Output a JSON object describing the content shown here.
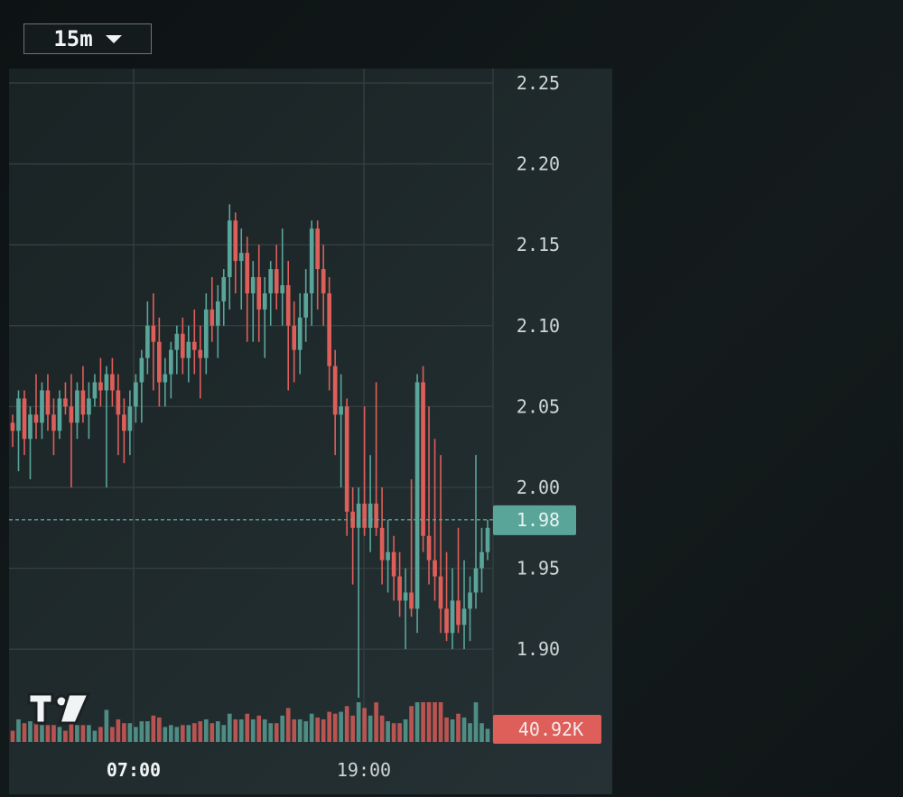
{
  "toolbar": {
    "timeframe": "15m",
    "dropdown_icon": "caret-down-icon"
  },
  "logo": {
    "icon": "tradingview-logo-icon"
  },
  "colors": {
    "up": "#5aa59a",
    "down": "#de5e5a",
    "grid": "#333d3f",
    "axis_text": "#d0d6d7",
    "last_price_bg": "#5aa59a",
    "volume_label_bg": "#de5e5a"
  },
  "chart_data": {
    "type": "candlestick",
    "instrument_price_axis": {
      "ticks": [
        "2.25",
        "2.20",
        "2.15",
        "2.10",
        "2.05",
        "2.00",
        "1.95",
        "1.90"
      ],
      "ylim": [
        1.876,
        2.258
      ]
    },
    "time_axis": {
      "ticks": [
        "07:00",
        "19:00"
      ],
      "highlighted_tick": "07:00"
    },
    "last_price": 1.98,
    "last_price_label": "1.98",
    "volume_label": "40.92K",
    "candles_ohlc": [
      [
        2.04,
        2.045,
        2.025,
        2.035
      ],
      [
        2.035,
        2.06,
        2.01,
        2.055
      ],
      [
        2.055,
        2.06,
        2.02,
        2.03
      ],
      [
        2.03,
        2.05,
        2.005,
        2.045
      ],
      [
        2.045,
        2.07,
        2.03,
        2.04
      ],
      [
        2.04,
        2.065,
        2.03,
        2.06
      ],
      [
        2.06,
        2.07,
        2.035,
        2.045
      ],
      [
        2.045,
        2.055,
        2.02,
        2.035
      ],
      [
        2.035,
        2.06,
        2.03,
        2.055
      ],
      [
        2.055,
        2.065,
        2.045,
        2.05
      ],
      [
        2.05,
        2.07,
        2.0,
        2.04
      ],
      [
        2.04,
        2.065,
        2.03,
        2.06
      ],
      [
        2.06,
        2.075,
        2.04,
        2.045
      ],
      [
        2.045,
        2.065,
        2.03,
        2.055
      ],
      [
        2.055,
        2.07,
        2.05,
        2.065
      ],
      [
        2.065,
        2.08,
        2.05,
        2.06
      ],
      [
        2.06,
        2.075,
        2.0,
        2.07
      ],
      [
        2.07,
        2.08,
        2.05,
        2.06
      ],
      [
        2.06,
        2.07,
        2.02,
        2.045
      ],
      [
        2.045,
        2.055,
        2.015,
        2.035
      ],
      [
        2.035,
        2.06,
        2.02,
        2.05
      ],
      [
        2.05,
        2.07,
        2.04,
        2.065
      ],
      [
        2.065,
        2.085,
        2.04,
        2.08
      ],
      [
        2.08,
        2.115,
        2.07,
        2.1
      ],
      [
        2.1,
        2.12,
        2.06,
        2.09
      ],
      [
        2.09,
        2.105,
        2.05,
        2.065
      ],
      [
        2.065,
        2.08,
        2.05,
        2.07
      ],
      [
        2.07,
        2.09,
        2.055,
        2.085
      ],
      [
        2.085,
        2.1,
        2.07,
        2.095
      ],
      [
        2.095,
        2.105,
        2.07,
        2.08
      ],
      [
        2.08,
        2.1,
        2.065,
        2.09
      ],
      [
        2.09,
        2.11,
        2.07,
        2.085
      ],
      [
        2.085,
        2.1,
        2.055,
        2.08
      ],
      [
        2.08,
        2.12,
        2.07,
        2.11
      ],
      [
        2.11,
        2.13,
        2.09,
        2.1
      ],
      [
        2.1,
        2.125,
        2.08,
        2.115
      ],
      [
        2.115,
        2.135,
        2.1,
        2.13
      ],
      [
        2.13,
        2.175,
        2.11,
        2.165
      ],
      [
        2.165,
        2.17,
        2.12,
        2.14
      ],
      [
        2.14,
        2.16,
        2.11,
        2.145
      ],
      [
        2.145,
        2.155,
        2.09,
        2.12
      ],
      [
        2.12,
        2.14,
        2.09,
        2.13
      ],
      [
        2.13,
        2.15,
        2.09,
        2.11
      ],
      [
        2.11,
        2.13,
        2.08,
        2.12
      ],
      [
        2.12,
        2.14,
        2.1,
        2.135
      ],
      [
        2.135,
        2.15,
        2.11,
        2.12
      ],
      [
        2.12,
        2.16,
        2.1,
        2.125
      ],
      [
        2.125,
        2.14,
        2.06,
        2.1
      ],
      [
        2.1,
        2.115,
        2.065,
        2.085
      ],
      [
        2.085,
        2.12,
        2.07,
        2.105
      ],
      [
        2.105,
        2.135,
        2.09,
        2.12
      ],
      [
        2.12,
        2.165,
        2.1,
        2.16
      ],
      [
        2.16,
        2.165,
        2.11,
        2.135
      ],
      [
        2.135,
        2.15,
        2.1,
        2.12
      ],
      [
        2.12,
        2.13,
        2.06,
        2.075
      ],
      [
        2.075,
        2.085,
        2.02,
        2.045
      ],
      [
        2.045,
        2.07,
        2.0,
        2.05
      ],
      [
        2.05,
        2.055,
        1.97,
        1.985
      ],
      [
        1.985,
        2.0,
        1.94,
        1.975
      ],
      [
        1.975,
        2.0,
        1.87,
        1.99
      ],
      [
        1.99,
        2.05,
        1.97,
        1.975
      ],
      [
        1.975,
        2.02,
        1.96,
        1.99
      ],
      [
        1.99,
        2.065,
        1.97,
        1.975
      ],
      [
        1.975,
        2.0,
        1.94,
        1.955
      ],
      [
        1.955,
        1.98,
        1.935,
        1.96
      ],
      [
        1.96,
        1.97,
        1.93,
        1.945
      ],
      [
        1.945,
        1.96,
        1.92,
        1.93
      ],
      [
        1.93,
        1.95,
        1.9,
        1.935
      ],
      [
        1.935,
        2.005,
        1.92,
        1.925
      ],
      [
        1.925,
        2.07,
        1.91,
        2.065
      ],
      [
        2.065,
        2.075,
        1.96,
        1.97
      ],
      [
        1.97,
        2.05,
        1.94,
        1.955
      ],
      [
        1.955,
        2.03,
        1.93,
        1.945
      ],
      [
        1.945,
        2.02,
        1.91,
        1.925
      ],
      [
        1.925,
        1.96,
        1.905,
        1.91
      ],
      [
        1.91,
        1.95,
        1.9,
        1.93
      ],
      [
        1.93,
        1.975,
        1.91,
        1.915
      ],
      [
        1.915,
        1.955,
        1.9,
        1.925
      ],
      [
        1.925,
        1.945,
        1.905,
        1.935
      ],
      [
        1.935,
        2.02,
        1.925,
        1.95
      ],
      [
        1.95,
        1.975,
        1.935,
        1.96
      ],
      [
        1.96,
        1.98,
        1.955,
        1.975
      ]
    ],
    "candle_directions": "derived from open/close"
  }
}
